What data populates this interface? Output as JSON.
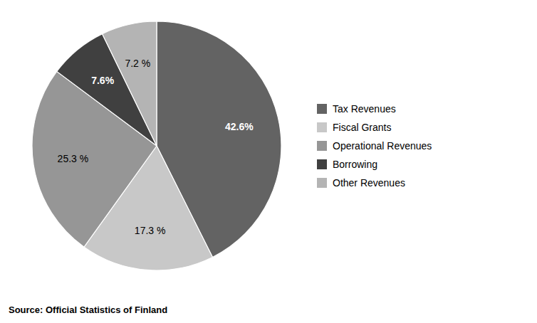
{
  "chart_data": {
    "type": "pie",
    "categories": [
      "Tax Revenues",
      "Fiscal Grants",
      "Operational Revenues",
      "Borrowing",
      "Other Revenues"
    ],
    "values": [
      42.6,
      17.3,
      25.3,
      7.6,
      7.2
    ],
    "value_labels": [
      "42.6%",
      "17.3 %",
      "25.3 %",
      "7.6%",
      "7.2 %"
    ],
    "colors": [
      "#636363",
      "#c8c8c8",
      "#969696",
      "#404040",
      "#b4b4b4"
    ],
    "data_labels": true,
    "legend": "right",
    "annotations": [
      "Source: Official Statistics of Finland"
    ]
  }
}
